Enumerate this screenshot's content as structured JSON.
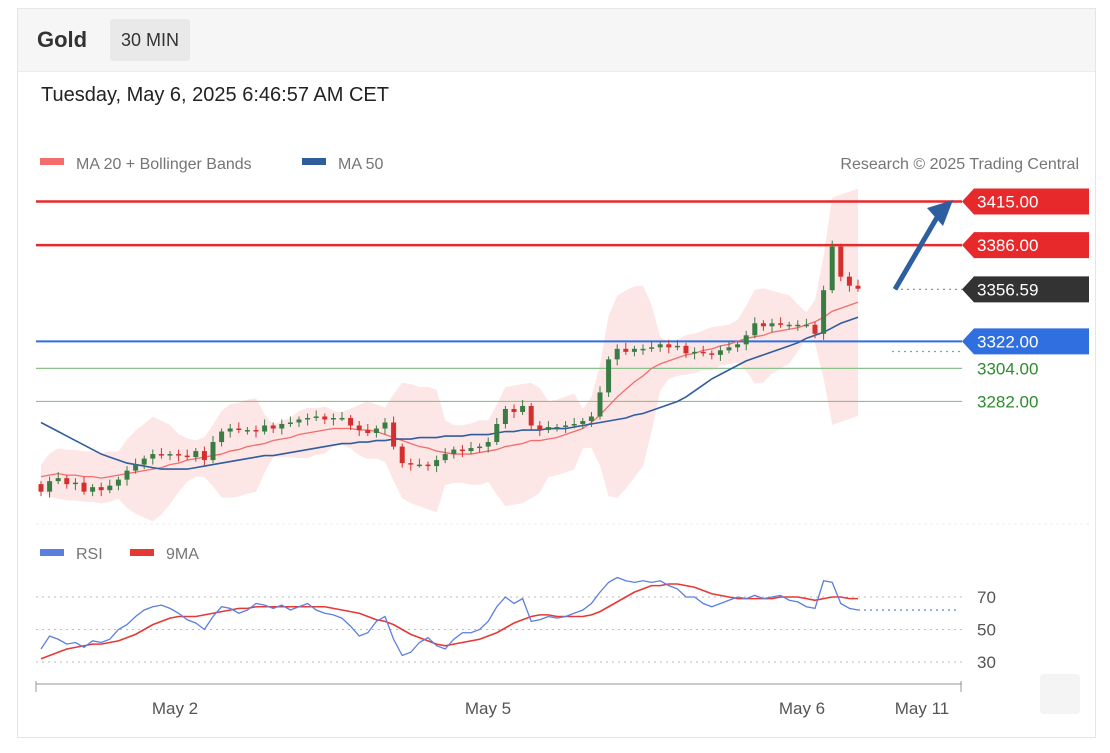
{
  "header": {
    "instrument": "Gold",
    "timeframe": "30 MIN"
  },
  "datetime": "Tuesday, May 6, 2025 6:46:57 AM CET",
  "legend_top": [
    {
      "label": "MA 20 + Bollinger Bands",
      "color": "#f36d6d"
    },
    {
      "label": "MA 50",
      "color": "#2f5d9e"
    }
  ],
  "copyright": "Research © 2025 Trading Central",
  "legend_rsi": [
    {
      "label": "RSI",
      "color": "#5b7fdf"
    },
    {
      "label": "9MA",
      "color": "#e53935"
    }
  ],
  "colors": {
    "resistance": "#e8292b",
    "support_pivot": "#2f6fe0",
    "support": "#8cc08c",
    "support_text": "#2e8b2e",
    "last_price": "#333333",
    "bull": "#3a7d44",
    "bear": "#d32f2f",
    "arrow": "#2d5fa0",
    "bollinger_fill": "#fde2e2",
    "ma50": "#2f5d9e",
    "ma20": "#f36d6d"
  },
  "chart_data": [
    {
      "type": "candlestick",
      "title": "",
      "x_ticks": [
        "May 2",
        "May 5",
        "May 6",
        "May 11"
      ],
      "ylim": [
        3210,
        3430
      ],
      "levels": [
        {
          "label": "3415.00",
          "value": 3415,
          "role": "resistance"
        },
        {
          "label": "3386.00",
          "value": 3386,
          "role": "resistance"
        },
        {
          "label": "3356.59",
          "value": 3356.59,
          "role": "last_price"
        },
        {
          "label": "3322.00",
          "value": 3322,
          "role": "pivot"
        },
        {
          "label": "3304.00",
          "value": 3304,
          "role": "support"
        },
        {
          "label": "3282.00",
          "value": 3282,
          "role": "support"
        }
      ],
      "close": [
        3222,
        3229,
        3231,
        3227,
        3228,
        3222,
        3225,
        3223,
        3226,
        3230,
        3236,
        3240,
        3244,
        3247,
        3246,
        3247,
        3246,
        3245,
        3249,
        3243,
        3255,
        3262,
        3264,
        3263,
        3263,
        3262,
        3266,
        3264,
        3267,
        3268,
        3270,
        3271,
        3272,
        3270,
        3271,
        3271,
        3266,
        3263,
        3261,
        3264,
        3268,
        3252,
        3241,
        3240,
        3240,
        3239,
        3243,
        3247,
        3250,
        3249,
        3251,
        3252,
        3255,
        3267,
        3277,
        3275,
        3279,
        3266,
        3263,
        3265,
        3265,
        3266,
        3267,
        3269,
        3272,
        3288,
        3310,
        3317,
        3315,
        3317,
        3317,
        3318,
        3320,
        3318,
        3319,
        3314,
        3315,
        3314,
        3313,
        3316,
        3318,
        3320,
        3326,
        3334,
        3332,
        3334,
        3333,
        3333,
        3333,
        3333,
        3327,
        3356,
        3385,
        3365,
        3359,
        3357
      ],
      "ma20": [
        3232,
        3233,
        3234,
        3233,
        3233,
        3232,
        3232,
        3231,
        3232,
        3233,
        3234,
        3235,
        3236,
        3237,
        3238,
        3240,
        3241,
        3243,
        3244,
        3245,
        3246,
        3247,
        3249,
        3250,
        3252,
        3253,
        3254,
        3256,
        3257,
        3258,
        3260,
        3261,
        3262,
        3263,
        3264,
        3264,
        3264,
        3263,
        3263,
        3262,
        3260,
        3258,
        3256,
        3254,
        3252,
        3251,
        3249,
        3248,
        3247,
        3247,
        3247,
        3248,
        3249,
        3250,
        3252,
        3253,
        3254,
        3256,
        3256,
        3257,
        3258,
        3260,
        3262,
        3264,
        3268,
        3273,
        3279,
        3285,
        3290,
        3295,
        3299,
        3304,
        3307,
        3309,
        3311,
        3313,
        3314,
        3316,
        3317,
        3319,
        3320,
        3322,
        3324,
        3325,
        3326,
        3328,
        3329,
        3330,
        3331,
        3333,
        3335,
        3338,
        3342,
        3344,
        3346,
        3348
      ],
      "ma50": [
        3268,
        3265,
        3262,
        3259,
        3256,
        3253,
        3250,
        3247,
        3245,
        3243,
        3241,
        3240,
        3239,
        3238,
        3237,
        3237,
        3237,
        3237,
        3238,
        3239,
        3240,
        3241,
        3242,
        3243,
        3244,
        3245,
        3246,
        3246,
        3247,
        3248,
        3249,
        3250,
        3251,
        3252,
        3253,
        3254,
        3254,
        3255,
        3255,
        3256,
        3256,
        3257,
        3257,
        3257,
        3258,
        3258,
        3258,
        3259,
        3259,
        3259,
        3260,
        3260,
        3260,
        3261,
        3262,
        3262,
        3263,
        3263,
        3263,
        3264,
        3264,
        3264,
        3265,
        3266,
        3267,
        3268,
        3269,
        3270,
        3271,
        3273,
        3274,
        3276,
        3278,
        3280,
        3282,
        3285,
        3289,
        3293,
        3297,
        3300,
        3303,
        3306,
        3309,
        3311,
        3313,
        3315,
        3317,
        3319,
        3321,
        3324,
        3326,
        3328,
        3331,
        3334,
        3336,
        3338
      ]
    },
    {
      "type": "line",
      "title": "",
      "ylim": [
        20,
        85
      ],
      "y_ticks": [
        70,
        50,
        30
      ],
      "series": [
        {
          "name": "RSI",
          "values": [
            38,
            46,
            44,
            41,
            42,
            39,
            43,
            42,
            44,
            50,
            53,
            58,
            62,
            64,
            65,
            63,
            60,
            56,
            54,
            50,
            58,
            64,
            63,
            60,
            62,
            66,
            65,
            63,
            65,
            62,
            64,
            66,
            62,
            60,
            59,
            57,
            52,
            46,
            48,
            55,
            58,
            44,
            34,
            36,
            42,
            45,
            40,
            38,
            44,
            48,
            48,
            50,
            55,
            64,
            70,
            66,
            69,
            55,
            56,
            58,
            57,
            58,
            60,
            62,
            66,
            73,
            79,
            82,
            80,
            79,
            80,
            79,
            80,
            77,
            75,
            70,
            70,
            66,
            64,
            66,
            68,
            70,
            69,
            71,
            69,
            70,
            71,
            68,
            67,
            64,
            63,
            80,
            79,
            66,
            63,
            62
          ]
        },
        {
          "name": "9MA",
          "values": [
            32,
            34,
            36,
            38,
            39,
            40,
            41,
            41,
            42,
            43,
            45,
            47,
            50,
            53,
            55,
            57,
            58,
            58,
            58,
            59,
            60,
            61,
            62,
            63,
            63,
            64,
            64,
            64,
            64,
            64,
            64,
            64,
            64,
            64,
            63,
            62,
            61,
            60,
            58,
            56,
            55,
            53,
            50,
            47,
            45,
            43,
            41,
            40,
            41,
            42,
            43,
            44,
            46,
            48,
            51,
            54,
            56,
            58,
            59,
            59,
            58,
            58,
            58,
            58,
            59,
            61,
            64,
            67,
            70,
            73,
            75,
            77,
            77,
            78,
            78,
            77,
            76,
            74,
            72,
            71,
            70,
            69,
            69,
            69,
            69,
            69,
            70,
            70,
            70,
            69,
            68,
            69,
            70,
            70,
            69,
            69
          ]
        }
      ]
    }
  ]
}
